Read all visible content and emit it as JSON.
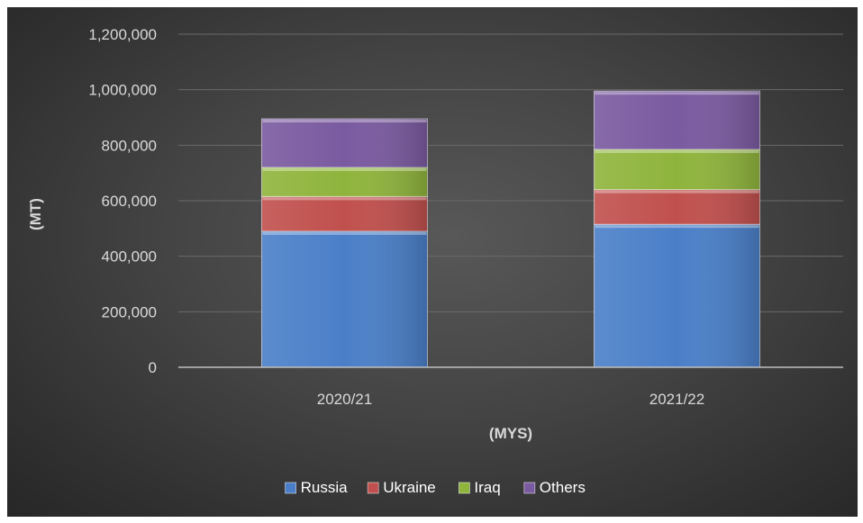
{
  "chart_data": {
    "type": "bar",
    "stacked": true,
    "title": "",
    "xlabel": "(MYS)",
    "ylabel": "(MT)",
    "categories": [
      "2020/21",
      "2021/22"
    ],
    "series": [
      {
        "name": "Russia",
        "color": "#4a7fc8",
        "values": [
          490000,
          515000
        ]
      },
      {
        "name": "Ukraine",
        "color": "#c0504d",
        "values": [
          125000,
          125000
        ]
      },
      {
        "name": "Iraq",
        "color": "#8fb43c",
        "values": [
          105000,
          145000
        ]
      },
      {
        "name": "Others",
        "color": "#7a5aa0",
        "values": [
          175000,
          210000
        ]
      }
    ],
    "ylim": [
      0,
      1200000
    ],
    "yticks": [
      0,
      200000,
      400000,
      600000,
      800000,
      1000000,
      1200000
    ],
    "ytick_labels": [
      "0",
      "200,000",
      "400,000",
      "600,000",
      "800,000",
      "1,000,000",
      "1,200,000"
    ],
    "grid": true,
    "legend_position": "bottom"
  }
}
